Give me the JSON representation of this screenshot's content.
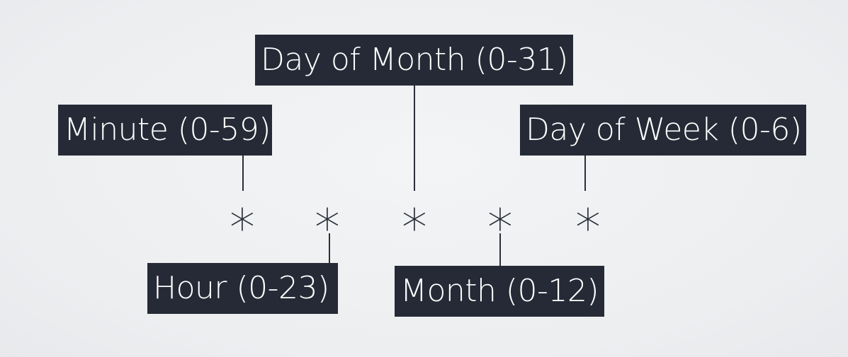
{
  "fields": {
    "minute": "Minute (0-59)",
    "hour": "Hour (0-23)",
    "day_of_month": "Day of Month (0-31)",
    "month": "Month (0-12)",
    "day_of_week": "Day of Week (0-6)"
  },
  "expression": [
    "*",
    "*",
    "*",
    "*",
    "*"
  ],
  "colors": {
    "label_background": "#252a36",
    "label_text": "#ffffff",
    "background": "#eeeff1",
    "connector": "#2b2f3a"
  }
}
